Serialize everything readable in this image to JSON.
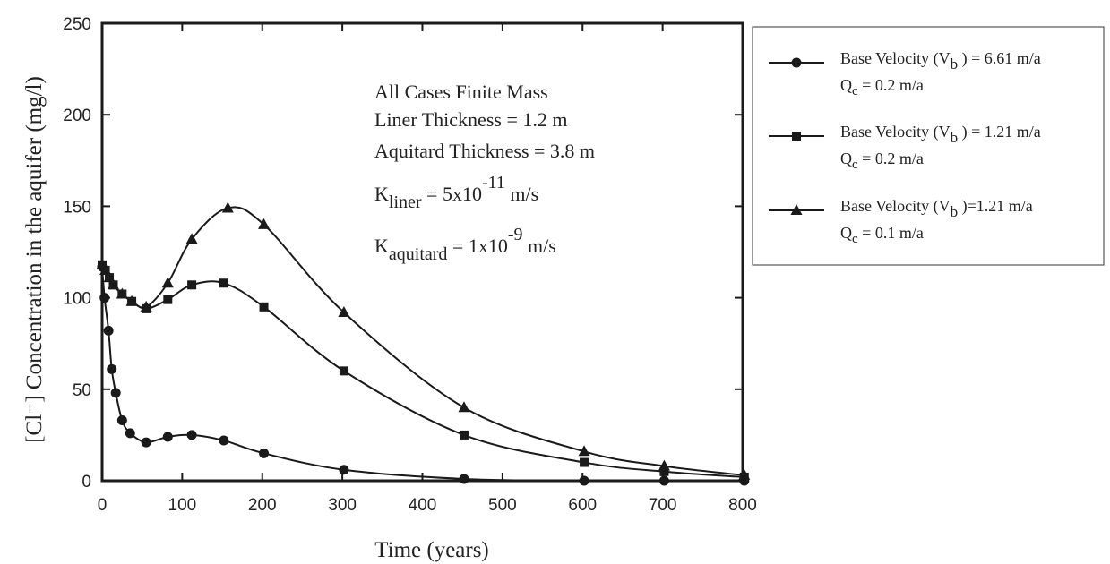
{
  "chart_data": {
    "type": "line",
    "title": "",
    "xlabel": "Time (years)",
    "ylabel": "[Cl⁻] Concentration in the aquifer (mg/l)",
    "xlim": [
      0,
      800
    ],
    "ylim": [
      0,
      250
    ],
    "x_ticks": [
      0,
      100,
      200,
      300,
      400,
      500,
      600,
      700,
      800
    ],
    "y_ticks": [
      0,
      50,
      100,
      150,
      200,
      250
    ],
    "grid": false,
    "legend_position": "outside-right",
    "series": [
      {
        "marker": "circle",
        "legend": {
          "line1_pre": "Base Velocity (V",
          "line1_sub": "b",
          "line1_post": " ) = 6.61 m/a",
          "line2_main": "Q",
          "line2_sub": "c",
          "line2_post": " = 0.2 m/a"
        },
        "x": [
          0,
          3,
          8,
          12,
          17,
          25,
          35,
          55,
          82,
          112,
          152,
          202,
          302,
          452,
          602,
          702,
          802
        ],
        "y": [
          117,
          100,
          82,
          61,
          48,
          33,
          26,
          21,
          24,
          25,
          22,
          15,
          6,
          1,
          0,
          0,
          0
        ]
      },
      {
        "marker": "square",
        "legend": {
          "line1_pre": "Base Velocity (V",
          "line1_sub": "b",
          "line1_post": " ) = 1.21 m/a",
          "line2_main": "Q",
          "line2_sub": "c",
          "line2_post": " = 0.2 m/a"
        },
        "x": [
          0,
          4,
          9,
          14,
          25,
          37,
          55,
          82,
          112,
          152,
          202,
          302,
          452,
          602,
          702,
          802
        ],
        "y": [
          118,
          115,
          111,
          107,
          102,
          98,
          94,
          99,
          107,
          108,
          95,
          60,
          25,
          10,
          5,
          2
        ]
      },
      {
        "marker": "triangle",
        "legend": {
          "line1_pre": "Base Velocity (V",
          "line1_sub": "b",
          "line1_post": " )=1.21 m/a",
          "line2_main": "Q",
          "line2_sub": "c",
          "line2_post": " = 0.1 m/a"
        },
        "x": [
          0,
          4,
          9,
          14,
          25,
          37,
          55,
          82,
          112,
          157,
          202,
          302,
          452,
          602,
          702,
          802
        ],
        "y": [
          118,
          115,
          111,
          107,
          102,
          98,
          95,
          108,
          132,
          149,
          140,
          92,
          40,
          16,
          8,
          3
        ]
      }
    ],
    "annotations": {
      "line1": "All Cases Finite Mass",
      "line2": "Liner Thickness = 1.2 m",
      "line3": "Aquitard Thickness = 3.8 m",
      "k1_main": "K",
      "k1_sub": "liner",
      "k1_eq": " = 5x10",
      "k1_exp": "-11",
      "k1_unit": " m/s",
      "k2_main": "K",
      "k2_sub": "aquitard",
      "k2_eq": " = 1x10",
      "k2_exp": "-9",
      "k2_unit": " m/s"
    }
  }
}
